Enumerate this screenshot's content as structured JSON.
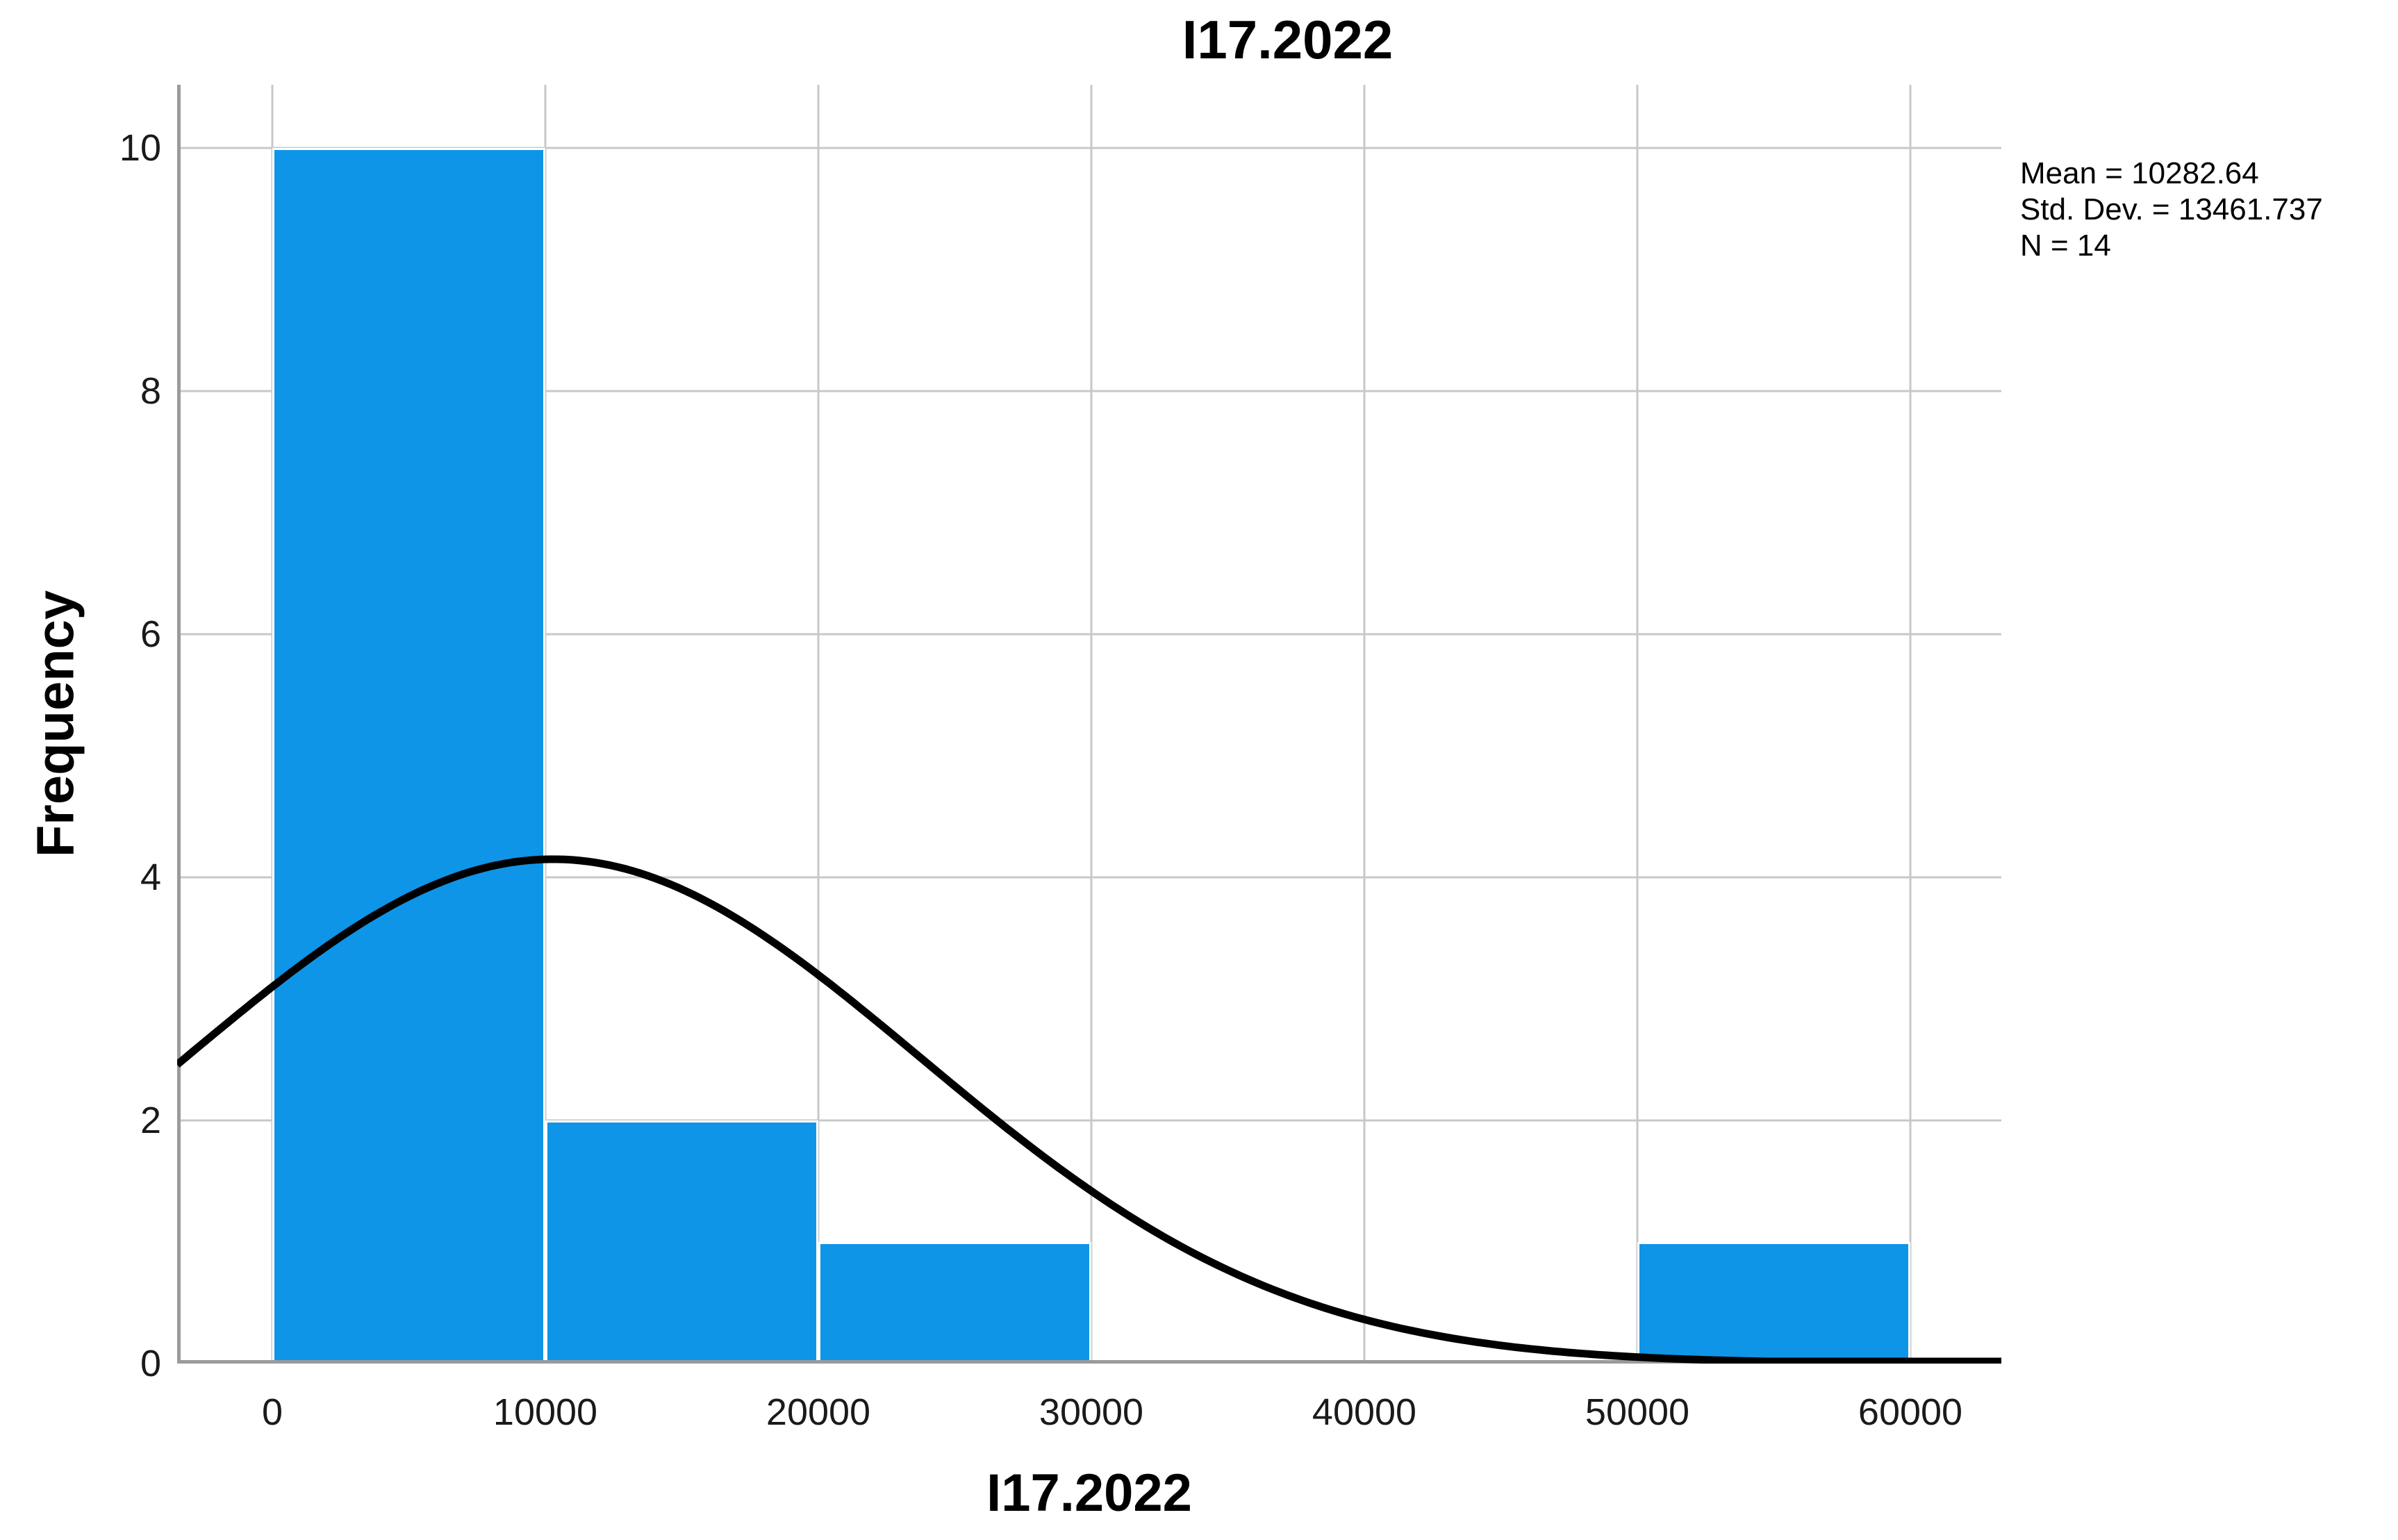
{
  "chart_title": "I17.2022",
  "stats": {
    "mean_line": "Mean = 10282.64",
    "std_dev_line": "Std. Dev. = 13461.737",
    "n_line": "N = 14"
  },
  "chart_data": {
    "type": "bar",
    "subtype": "histogram-with-normal-curve",
    "title": "I17.2022",
    "xlabel": "I17.2022",
    "ylabel": "Frequency",
    "x_ticks": [
      0,
      10000,
      20000,
      30000,
      40000,
      50000,
      60000
    ],
    "y_ticks": [
      0,
      2,
      4,
      6,
      8,
      10
    ],
    "xlim": [
      -3486,
      63333
    ],
    "ylim": [
      0,
      10.52
    ],
    "grid": true,
    "legend_position": "none",
    "bins": [
      {
        "x0": 0,
        "x1": 10000,
        "count": 10
      },
      {
        "x0": 10000,
        "x1": 20000,
        "count": 2
      },
      {
        "x0": 20000,
        "x1": 30000,
        "count": 1
      },
      {
        "x0": 50000,
        "x1": 60000,
        "count": 1
      }
    ],
    "normal_curve": {
      "mean": 10282.64,
      "std_dev": 13461.737,
      "n": 14,
      "bin_width": 10000
    },
    "annotations": [
      "Mean = 10282.64",
      "Std. Dev. = 13461.737",
      "N = 14"
    ],
    "colors": {
      "bar_fill": "#0E95E8",
      "bar_stroke": "#FFFFFF",
      "curve": "#000000",
      "gridline": "#C8C8C8",
      "axis_line": "#9B9B9B",
      "text": "#1A1A1A",
      "background": "#FFFFFF"
    }
  }
}
